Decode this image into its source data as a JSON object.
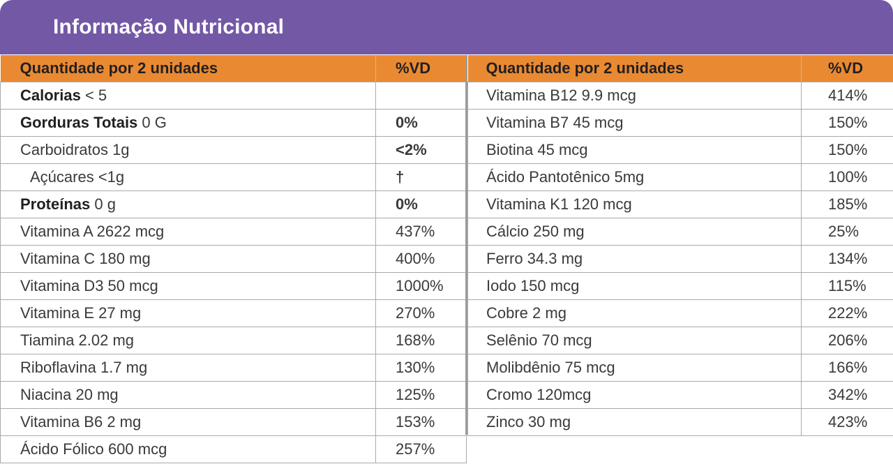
{
  "header": {
    "title": "Informação Nutricional"
  },
  "left_table": {
    "col_name": "Quantidade por 2 unidades",
    "col_pct": "%VD",
    "rows": [
      {
        "name": "Calorias",
        "amount": "< 5",
        "pct": ""
      },
      {
        "name": "Gorduras Totais",
        "amount": "0 G",
        "pct": "0%"
      },
      {
        "name": "",
        "amount": "Carboidratos 1g",
        "pct": "<2%"
      },
      {
        "name": "",
        "amount": "Açúcares <1g",
        "pct": "†"
      },
      {
        "name": "Proteínas",
        "amount": "0 g",
        "pct": "0%"
      },
      {
        "name": "",
        "amount": "Vitamina A 2622 mcg",
        "pct": "437%"
      },
      {
        "name": "",
        "amount": "Vitamina C 180 mg",
        "pct": "400%"
      },
      {
        "name": "",
        "amount": "Vitamina D3 50 mcg",
        "pct": "1000%"
      },
      {
        "name": "",
        "amount": "Vitamina E 27 mg",
        "pct": "270%"
      },
      {
        "name": "",
        "amount": "Tiamina 2.02 mg",
        "pct": "168%"
      },
      {
        "name": "",
        "amount": "Riboflavina 1.7 mg",
        "pct": "130%"
      },
      {
        "name": "",
        "amount": "Niacina 20 mg",
        "pct": "125%"
      },
      {
        "name": "",
        "amount": "Vitamina B6 2 mg",
        "pct": "153%"
      },
      {
        "name": "",
        "amount": "Ácido Fólico 600 mcg",
        "pct": "257%"
      }
    ]
  },
  "right_table": {
    "col_name": "Quantidade por 2 unidades",
    "col_pct": "%VD",
    "rows": [
      {
        "amount": "Vitamina B12 9.9 mcg",
        "pct": "414%"
      },
      {
        "amount": "Vitamina B7 45 mcg",
        "pct": "150%"
      },
      {
        "amount": "Biotina 45 mcg",
        "pct": "150%"
      },
      {
        "amount": "Ácido Pantotênico 5mg",
        "pct": "100%"
      },
      {
        "amount": "Vitamina K1 120 mcg",
        "pct": "185%"
      },
      {
        "amount": "Cálcio 250 mg",
        "pct": "25%"
      },
      {
        "amount": "Ferro 34.3 mg",
        "pct": "134%"
      },
      {
        "amount": "Iodo 150 mcg",
        "pct": "115%"
      },
      {
        "amount": "Cobre 2 mg",
        "pct": "222%"
      },
      {
        "amount": "Selênio 70 mcg",
        "pct": "206%"
      },
      {
        "amount": "Molibdênio 75 mcg",
        "pct": "166%"
      },
      {
        "amount": "Cromo 120mcg",
        "pct": "342%"
      },
      {
        "amount": "Zinco 30 mg",
        "pct": "423%"
      }
    ]
  },
  "colors": {
    "header_bg": "#7358a6",
    "column_header_bg": "#e98a32"
  }
}
